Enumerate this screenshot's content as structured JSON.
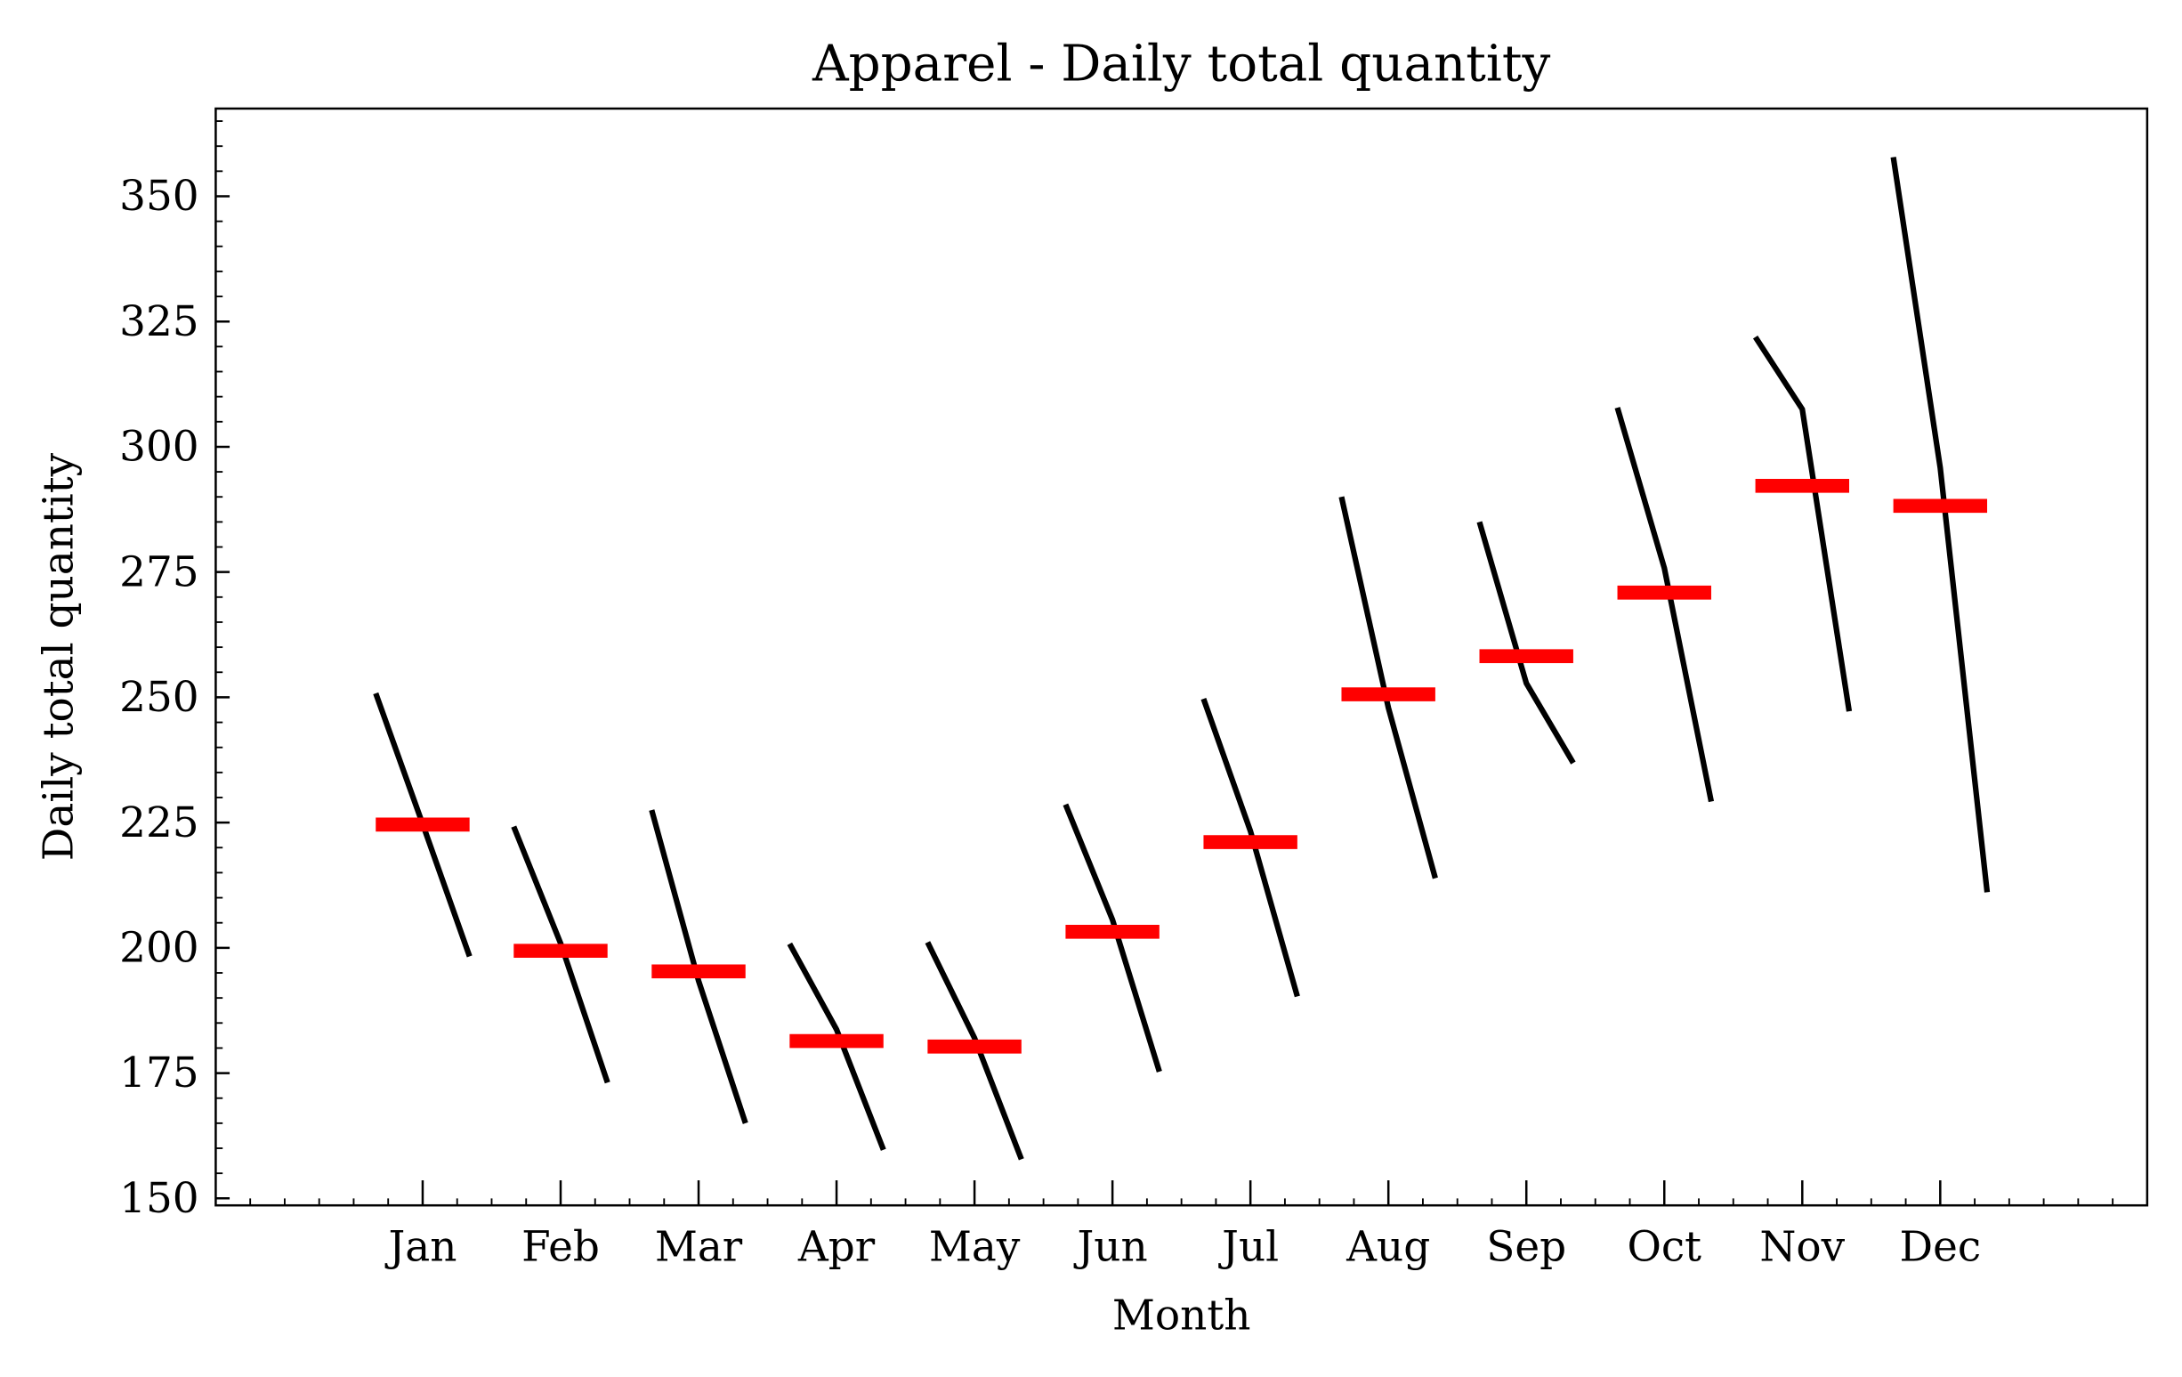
{
  "chart_data": {
    "type": "month_plot",
    "title": "Apparel - Daily total quantity",
    "x_label": "Month",
    "y_label": "Daily total quantity",
    "categories": [
      "Jan",
      "Feb",
      "Mar",
      "Apr",
      "May",
      "Jun",
      "Jul",
      "Aug",
      "Sep",
      "Oct",
      "Nov",
      "Dec"
    ],
    "subseries": [
      [
        250.8,
        224.7,
        198.3
      ],
      [
        224.2,
        200.9,
        173.1
      ],
      [
        227.5,
        193.4,
        165.0
      ],
      [
        200.8,
        183.7,
        159.7
      ],
      [
        201.1,
        182.0,
        157.8
      ],
      [
        228.6,
        205.6,
        175.3
      ],
      [
        249.7,
        223.3,
        190.3
      ],
      [
        290.0,
        247.9,
        213.9
      ],
      [
        285.0,
        252.8,
        236.9
      ],
      [
        307.8,
        275.8,
        229.2
      ],
      [
        321.9,
        307.5,
        247.2
      ],
      [
        357.8,
        295.8,
        211.1
      ]
    ],
    "means": [
      224.6,
      199.4,
      195.3,
      181.4,
      180.3,
      203.2,
      221.1,
      250.6,
      258.2,
      270.9,
      292.2,
      288.2
    ],
    "line_color": "#000000",
    "mean_color": "#ff0000",
    "ylim": [
      148.6,
      367.5
    ],
    "yticks": [
      150,
      175,
      200,
      225,
      250,
      275,
      300,
      325,
      350
    ]
  }
}
